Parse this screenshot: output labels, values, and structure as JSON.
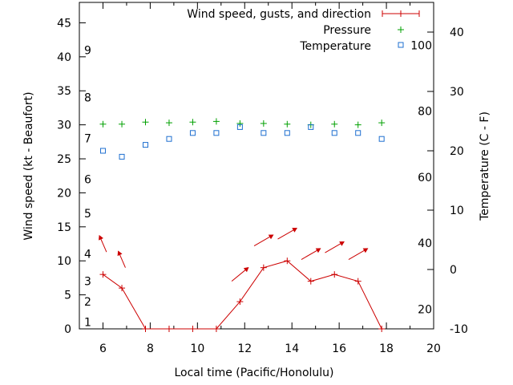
{
  "chart_data": {
    "type": "line",
    "xlabel": "Local time (Pacific/Honolulu)",
    "ylabel": "Wind speed (kt - Beaufort)",
    "y2label": "Temperature (C - F)",
    "xlim": [
      5,
      20
    ],
    "ylim": [
      0,
      48
    ],
    "y2lim": [
      -10,
      45
    ],
    "xticks": [
      6,
      8,
      10,
      12,
      14,
      16,
      18,
      20
    ],
    "yticks": [
      0,
      5,
      10,
      15,
      20,
      25,
      30,
      35,
      40,
      45
    ],
    "y2ticks": [
      -10,
      0,
      10,
      20,
      30,
      40
    ],
    "fahrenheit_labels": [
      {
        "f": 20
      },
      {
        "f": 40
      },
      {
        "f": 60
      },
      {
        "f": 80
      },
      {
        "f": 100
      }
    ],
    "beaufort_labels": [
      {
        "label": "1",
        "kt": 1
      },
      {
        "label": "2",
        "kt": 4
      },
      {
        "label": "3",
        "kt": 7
      },
      {
        "label": "4",
        "kt": 11
      },
      {
        "label": "5",
        "kt": 17
      },
      {
        "label": "6",
        "kt": 22
      },
      {
        "label": "7",
        "kt": 28
      },
      {
        "label": "8",
        "kt": 34
      },
      {
        "label": "9",
        "kt": 41
      }
    ],
    "legend": {
      "wind": "Wind speed, gusts, and direction",
      "pressure": "Pressure",
      "temperature": "Temperature"
    },
    "series": [
      {
        "name": "Wind speed, gusts, and direction",
        "color": "#cc0000",
        "x": [
          6.0,
          6.8,
          7.8,
          8.8,
          9.8,
          10.8,
          11.8,
          12.8,
          13.8,
          14.8,
          15.8,
          16.8,
          17.8
        ],
        "y": [
          8,
          6,
          0,
          0,
          0,
          0,
          4,
          9,
          10,
          7,
          8,
          7,
          0
        ]
      },
      {
        "name": "Pressure",
        "color": "#00a000",
        "x": [
          6.0,
          6.8,
          7.8,
          8.8,
          9.8,
          10.8,
          11.8,
          12.8,
          13.8,
          14.8,
          15.8,
          16.8,
          17.8
        ],
        "y": [
          30.1,
          30.1,
          30.4,
          30.3,
          30.4,
          30.5,
          30.2,
          30.2,
          30.1,
          30.0,
          30.1,
          30.0,
          30.3
        ]
      },
      {
        "name": "Temperature",
        "color": "#1e6fd0",
        "axis": "y2",
        "x": [
          6.0,
          6.8,
          7.8,
          8.8,
          9.8,
          10.8,
          11.8,
          12.8,
          13.8,
          14.8,
          15.8,
          16.8,
          17.8
        ],
        "y": [
          20,
          19,
          21,
          22,
          23,
          23,
          24,
          23,
          23,
          24,
          23,
          23,
          22
        ]
      }
    ],
    "direction_arrows": {
      "color": "#cc0000",
      "points": [
        {
          "x": 6.0,
          "y": 12.5,
          "dx": -0.15,
          "dy": 1.2
        },
        {
          "x": 6.8,
          "y": 10.2,
          "dx": -0.15,
          "dy": 1.2
        },
        {
          "x": 11.8,
          "y": 8.0,
          "dx": 0.35,
          "dy": 1.0
        },
        {
          "x": 12.8,
          "y": 13.0,
          "dx": 0.4,
          "dy": 0.8
        },
        {
          "x": 13.8,
          "y": 14.0,
          "dx": 0.4,
          "dy": 0.8
        },
        {
          "x": 14.8,
          "y": 11.0,
          "dx": 0.4,
          "dy": 0.8
        },
        {
          "x": 15.8,
          "y": 12.0,
          "dx": 0.4,
          "dy": 0.8
        },
        {
          "x": 16.8,
          "y": 11.0,
          "dx": 0.4,
          "dy": 0.8
        }
      ]
    }
  }
}
